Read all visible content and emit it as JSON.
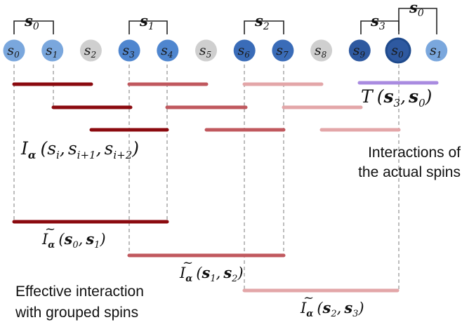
{
  "spins": [
    {
      "base": "s",
      "sub": "0",
      "color": "#7aa7dd"
    },
    {
      "base": "s",
      "sub": "1",
      "color": "#7aa7dd"
    },
    {
      "base": "s",
      "sub": "2",
      "color": "#cfcfcf"
    },
    {
      "base": "s",
      "sub": "3",
      "color": "#4f86cf"
    },
    {
      "base": "s",
      "sub": "4",
      "color": "#4f86cf"
    },
    {
      "base": "s",
      "sub": "5",
      "color": "#cfcfcf"
    },
    {
      "base": "s",
      "sub": "6",
      "color": "#3a6cb8"
    },
    {
      "base": "s",
      "sub": "7",
      "color": "#3a6cb8"
    },
    {
      "base": "s",
      "sub": "8",
      "color": "#cfcfcf"
    },
    {
      "base": "s",
      "sub": "9",
      "color": "#2e59a0"
    },
    {
      "base": "s",
      "sub": "0",
      "color": "#2e59a0"
    },
    {
      "base": "s",
      "sub": "1",
      "color": "#7aa7dd"
    }
  ],
  "groups": [
    {
      "base": "s",
      "sub": "0"
    },
    {
      "base": "s",
      "sub": "1"
    },
    {
      "base": "s",
      "sub": "2"
    },
    {
      "base": "s",
      "sub": "3"
    },
    {
      "base": "s",
      "sub": "0"
    }
  ],
  "colors": {
    "dark_red": "#8b0a0f",
    "mid_red": "#c0585e",
    "light_red": "#e3a6a8",
    "purple": "#a98be0",
    "grid": "#bdbdbd"
  },
  "labels": {
    "local_interaction": {
      "op": "I",
      "sub": "α",
      "open": "(",
      "a": "s",
      "a_sub": "i",
      "comma1": ",",
      "b": "s",
      "b_sub": "i+1",
      "comma2": ",",
      "c": "s",
      "c_sub": "i+2",
      "close": ")"
    },
    "boundary": {
      "op": "T",
      "open": "(",
      "a": "s",
      "a_sub": "3",
      "comma": ",",
      "b": "s",
      "b_sub": "0",
      "close": ")"
    },
    "effective": [
      {
        "op": "I",
        "tilde": "~",
        "sub": "α",
        "open": "(",
        "a": "s",
        "a_sub": "0",
        "comma": ",",
        "b": "s",
        "b_sub": "1",
        "close": ")"
      },
      {
        "op": "I",
        "tilde": "~",
        "sub": "α",
        "open": "(",
        "a": "s",
        "a_sub": "1",
        "comma": ",",
        "b": "s",
        "b_sub": "2",
        "close": ")"
      },
      {
        "op": "I",
        "tilde": "~",
        "sub": "α",
        "open": "(",
        "a": "s",
        "a_sub": "2",
        "comma": ",",
        "b": "s",
        "b_sub": "3",
        "close": ")"
      }
    ],
    "actual_spins_line1": "Interactions of",
    "actual_spins_line2": "the actual spins",
    "grouped_line1": "Effective interaction",
    "grouped_line2": "with grouped spins"
  }
}
